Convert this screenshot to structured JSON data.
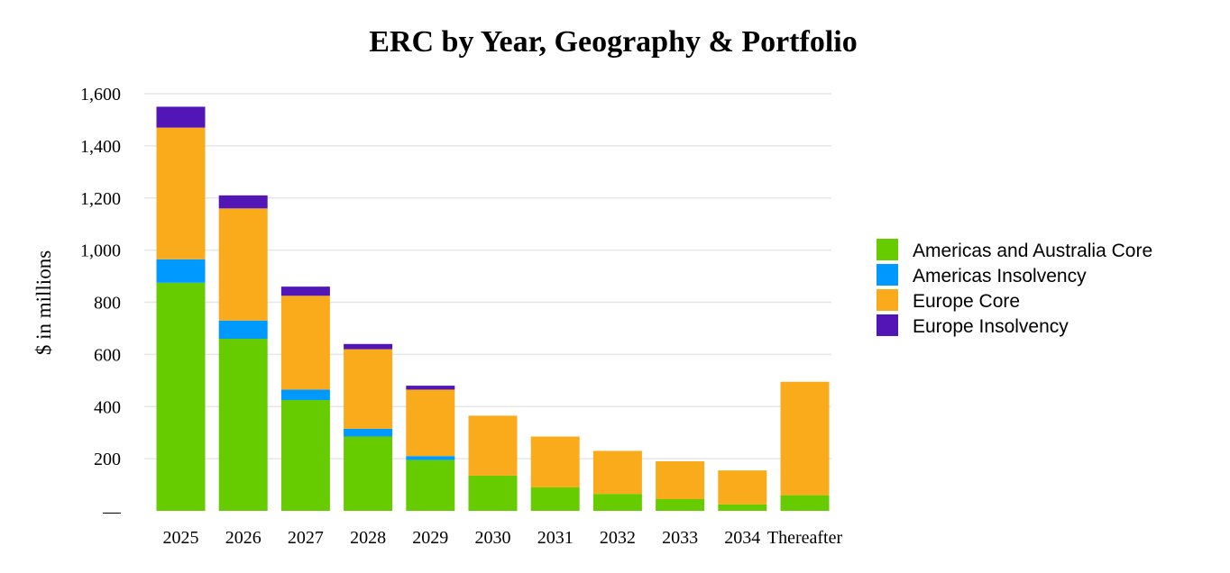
{
  "chart_data": {
    "type": "bar",
    "stacked": true,
    "title": "ERC by Year, Geography & Portfolio",
    "xlabel": "",
    "ylabel": "$ in millions",
    "ylim": [
      0,
      1600
    ],
    "yticks": [
      {
        "value": 0,
        "label": "—"
      },
      {
        "value": 200,
        "label": "200"
      },
      {
        "value": 400,
        "label": "400"
      },
      {
        "value": 600,
        "label": "600"
      },
      {
        "value": 800,
        "label": "800"
      },
      {
        "value": 1000,
        "label": "1,000"
      },
      {
        "value": 1200,
        "label": "1,200"
      },
      {
        "value": 1400,
        "label": "1,400"
      },
      {
        "value": 1600,
        "label": "1,600"
      }
    ],
    "grid": true,
    "legend_position": "right",
    "categories": [
      "2025",
      "2026",
      "2027",
      "2028",
      "2029",
      "2030",
      "2031",
      "2032",
      "2033",
      "2034",
      "Thereafter"
    ],
    "series": [
      {
        "name": "Americas and Australia Core",
        "color": "#66cc00",
        "values": [
          875,
          660,
          425,
          285,
          195,
          135,
          90,
          65,
          45,
          25,
          60
        ]
      },
      {
        "name": "Americas Insolvency",
        "color": "#0099ff",
        "values": [
          90,
          70,
          40,
          30,
          15,
          0,
          0,
          0,
          0,
          0,
          0
        ]
      },
      {
        "name": "Europe Core",
        "color": "#f9ab1c",
        "values": [
          505,
          430,
          360,
          305,
          255,
          230,
          195,
          165,
          145,
          130,
          435
        ]
      },
      {
        "name": "Europe Insolvency",
        "color": "#5216b7",
        "values": [
          80,
          50,
          35,
          20,
          15,
          0,
          0,
          0,
          0,
          0,
          0
        ]
      }
    ]
  }
}
